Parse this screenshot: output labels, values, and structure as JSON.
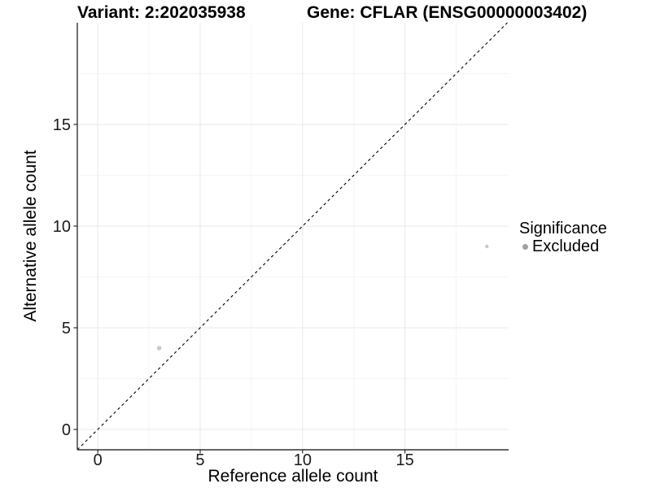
{
  "figure": {
    "title_variant": "Variant: 2:202035938",
    "title_gene": "Gene: CFLAR (ENSG00000003402)"
  },
  "chart_data": {
    "type": "scatter",
    "title_left": "Variant: 2:202035938",
    "title_right": "Gene: CFLAR (ENSG00000003402)",
    "xlabel": "Reference allele count",
    "ylabel": "Alternative allele count",
    "xlim": [
      -1,
      20.06
    ],
    "ylim": [
      -1,
      20
    ],
    "x_ticks": [
      0,
      5,
      10,
      15
    ],
    "y_ticks": [
      0,
      5,
      10,
      15
    ],
    "x_minor_ticks": [
      2.5,
      7.5,
      12.5,
      17.5
    ],
    "y_minor_ticks": [
      2.5,
      7.5,
      12.5,
      17.5
    ],
    "grid": "major and minor gridlines on white background",
    "identity_line": {
      "from": [
        -1,
        -1
      ],
      "to": [
        20,
        20
      ],
      "style": "dashed",
      "color": "#000000"
    },
    "points": [
      {
        "x": 3,
        "y": 4,
        "radius_px": 2.8,
        "series": "Excluded"
      },
      {
        "x": 19,
        "y": 9,
        "radius_px": 2.2,
        "series": "Excluded"
      }
    ],
    "point_color": "#c8c8c8",
    "legend": {
      "title": "Significance",
      "position": "right",
      "items": [
        {
          "label": "Excluded",
          "color": "#a1a1a1"
        }
      ]
    },
    "colors": {
      "grid_major": "#e9e9e9",
      "grid_minor": "#f5f5f5",
      "axis_line": "#333333",
      "tick_text": "#1a1a1a"
    }
  }
}
